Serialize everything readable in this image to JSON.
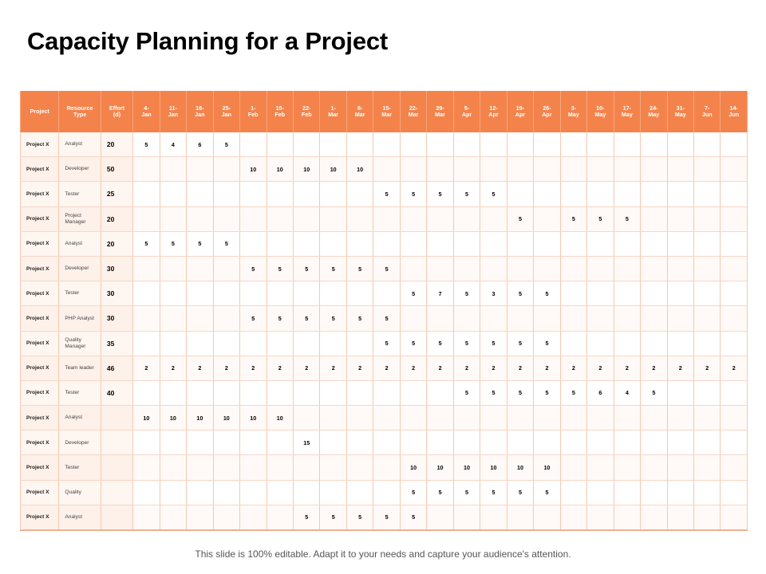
{
  "title": "Capacity Planning for a Project",
  "footer": "This slide is 100% editable. Adapt it to your needs and capture your audience's attention.",
  "colors": {
    "header_bg": "#f4834b",
    "header_text": "#ffffff",
    "row_tint": "#fdf1ea"
  },
  "table": {
    "headers": [
      "Project",
      "Resource Type",
      "Effort (d)",
      "4-Jan",
      "11-Jan",
      "18-Jan",
      "25-Jan",
      "1-Feb",
      "15-Feb",
      "22-Feb",
      "1-Mar",
      "8-Mar",
      "15-Mar",
      "22-Mar",
      "29-Mar",
      "5-Apr",
      "12-Apr",
      "19-Apr",
      "26-Apr",
      "3-May",
      "10-May",
      "17-May",
      "24-May",
      "31-May",
      "7-Jun",
      "14-Jun"
    ],
    "header_lines": [
      [
        "Project"
      ],
      [
        "Resource",
        "Type"
      ],
      [
        "Effort",
        "(d)"
      ],
      [
        "4-",
        "Jan"
      ],
      [
        "11-",
        "Jan"
      ],
      [
        "18-",
        "Jan"
      ],
      [
        "25-",
        "Jan"
      ],
      [
        "1-",
        "Feb"
      ],
      [
        "15-",
        "Feb"
      ],
      [
        "22-",
        "Feb"
      ],
      [
        "1-",
        "Mar"
      ],
      [
        "8-",
        "Mar"
      ],
      [
        "15-",
        "Mar"
      ],
      [
        "22-",
        "Mar"
      ],
      [
        "29-",
        "Mar"
      ],
      [
        "5-",
        "Apr"
      ],
      [
        "12-",
        "Apr"
      ],
      [
        "19-",
        "Apr"
      ],
      [
        "26-",
        "Apr"
      ],
      [
        "3-",
        "May"
      ],
      [
        "10-",
        "May"
      ],
      [
        "17-",
        "May"
      ],
      [
        "24-",
        "May"
      ],
      [
        "31-",
        "May"
      ],
      [
        "7-",
        "Jun"
      ],
      [
        "14-",
        "Jun"
      ]
    ],
    "rows": [
      [
        "Project X",
        "Analyst",
        "20",
        "5",
        "4",
        "6",
        "5",
        "",
        "",
        "",
        "",
        "",
        "",
        "",
        "",
        "",
        "",
        "",
        "",
        "",
        "",
        "",
        "",
        "",
        "",
        ""
      ],
      [
        "Project X",
        "Developer",
        "50",
        "",
        "",
        "",
        "",
        "10",
        "10",
        "10",
        "10",
        "10",
        "",
        "",
        "",
        "",
        "",
        "",
        "",
        "",
        "",
        "",
        "",
        "",
        "",
        ""
      ],
      [
        "Project X",
        "Tester",
        "25",
        "",
        "",
        "",
        "",
        "",
        "",
        "",
        "",
        "",
        "5",
        "5",
        "5",
        "5",
        "5",
        "",
        "",
        "",
        "",
        "",
        "",
        "",
        "",
        ""
      ],
      [
        "Project X",
        "Project Manager",
        "20",
        "",
        "",
        "",
        "",
        "",
        "",
        "",
        "",
        "",
        "",
        "",
        "",
        "",
        "",
        "5",
        "",
        "5",
        "5",
        "5",
        "",
        "",
        "",
        ""
      ],
      [
        "Project X",
        "Analyst",
        "20",
        "5",
        "5",
        "5",
        "5",
        "",
        "",
        "",
        "",
        "",
        "",
        "",
        "",
        "",
        "",
        "",
        "",
        "",
        "",
        "",
        "",
        "",
        "",
        ""
      ],
      [
        "Project X",
        "Developer",
        "30",
        "",
        "",
        "",
        "",
        "5",
        "5",
        "5",
        "5",
        "5",
        "5",
        "",
        "",
        "",
        "",
        "",
        "",
        "",
        "",
        "",
        "",
        "",
        "",
        ""
      ],
      [
        "Project X",
        "Tester",
        "30",
        "",
        "",
        "",
        "",
        "",
        "",
        "",
        "",
        "",
        "",
        "5",
        "7",
        "5",
        "3",
        "5",
        "5",
        "",
        "",
        "",
        "",
        "",
        "",
        ""
      ],
      [
        "Project X",
        "PHP Analyst",
        "30",
        "",
        "",
        "",
        "",
        "5",
        "5",
        "5",
        "5",
        "5",
        "5",
        "",
        "",
        "",
        "",
        "",
        "",
        "",
        "",
        "",
        "",
        "",
        "",
        ""
      ],
      [
        "Project X",
        "Quality Manager",
        "35",
        "",
        "",
        "",
        "",
        "",
        "",
        "",
        "",
        "",
        "5",
        "5",
        "5",
        "5",
        "5",
        "5",
        "5",
        "",
        "",
        "",
        "",
        "",
        "",
        ""
      ],
      [
        "Project X",
        "Team leader",
        "46",
        "2",
        "2",
        "2",
        "2",
        "2",
        "2",
        "2",
        "2",
        "2",
        "2",
        "2",
        "2",
        "2",
        "2",
        "2",
        "2",
        "2",
        "2",
        "2",
        "2",
        "2",
        "2",
        "2"
      ],
      [
        "Project X",
        "Tester",
        "40",
        "",
        "",
        "",
        "",
        "",
        "",
        "",
        "",
        "",
        "",
        "",
        "",
        "5",
        "5",
        "5",
        "5",
        "5",
        "6",
        "4",
        "5",
        "",
        "",
        ""
      ],
      [
        "Project X",
        "Analyst",
        "",
        "10",
        "10",
        "10",
        "10",
        "10",
        "10",
        "",
        "",
        "",
        "",
        "",
        "",
        "",
        "",
        "",
        "",
        "",
        "",
        "",
        "",
        "",
        "",
        ""
      ],
      [
        "Project X",
        "Developer",
        "",
        "",
        "",
        "",
        "",
        "",
        "",
        "15",
        "",
        "",
        "",
        "",
        "",
        "",
        "",
        "",
        "",
        "",
        "",
        "",
        "",
        "",
        "",
        ""
      ],
      [
        "Project X",
        "Tester",
        "",
        "",
        "",
        "",
        "",
        "",
        "",
        "",
        "",
        "",
        "",
        "10",
        "10",
        "10",
        "10",
        "10",
        "10",
        "",
        "",
        "",
        "",
        "",
        "",
        ""
      ],
      [
        "Project X",
        "Quality",
        "",
        "",
        "",
        "",
        "",
        "",
        "",
        "",
        "",
        "",
        "",
        "5",
        "5",
        "5",
        "5",
        "5",
        "5",
        "",
        "",
        "",
        "",
        "",
        "",
        ""
      ],
      [
        "Project X",
        "Analyst",
        "",
        "",
        "",
        "",
        "",
        "",
        "",
        "5",
        "5",
        "5",
        "5",
        "5",
        "",
        "",
        "",
        "",
        "",
        "",
        "",
        "",
        "",
        "",
        "",
        ""
      ]
    ]
  }
}
